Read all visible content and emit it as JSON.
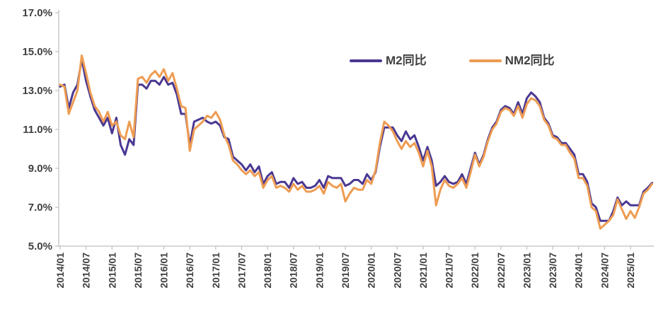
{
  "page": {
    "background": "#ffffff",
    "title": ""
  },
  "chart_data": {
    "type": "line",
    "title": "",
    "gridlines": false,
    "axis_color": "#bfbfbf",
    "text_color": "#404040",
    "legend": {
      "position": "top-center",
      "entries": [
        "M2同比",
        "NM2同比"
      ]
    },
    "x_axis": {
      "label": "",
      "start": "2014/01",
      "end": "2025/06",
      "frequency": "monthly",
      "tick_labels": [
        "2014/01",
        "2014/07",
        "2015/01",
        "2015/07",
        "2016/01",
        "2016/07",
        "2017/01",
        "2017/07",
        "2018/01",
        "2018/07",
        "2019/01",
        "2019/07",
        "2020/01",
        "2020/07",
        "2021/01",
        "2021/07",
        "2022/01",
        "2022/07",
        "2023/01",
        "2023/07",
        "2024/01",
        "2024/07",
        "2025/01"
      ],
      "months_between_ticks": 6
    },
    "y_axis": {
      "label": "",
      "unit": "%",
      "min": 5.0,
      "max": 17.0,
      "tick_values": [
        17.0,
        15.0,
        13.0,
        11.0,
        9.0,
        7.0,
        5.0
      ],
      "tick_labels": [
        "17.0%",
        "15.0%",
        "13.0%",
        "11.0%",
        "9.0%",
        "7.0%",
        "5.0%"
      ]
    },
    "series": [
      {
        "name": "M2同比",
        "color": "#4b3892",
        "values": [
          13.2,
          13.3,
          12.1,
          12.9,
          13.3,
          14.6,
          13.5,
          12.7,
          12.0,
          11.6,
          11.2,
          11.6,
          10.8,
          11.6,
          10.2,
          9.7,
          10.5,
          10.2,
          13.3,
          13.3,
          13.1,
          13.5,
          13.5,
          13.3,
          13.7,
          13.3,
          13.4,
          12.8,
          11.8,
          11.8,
          10.2,
          11.4,
          11.5,
          11.6,
          11.4,
          11.3,
          11.4,
          11.2,
          10.6,
          10.5,
          9.6,
          9.4,
          9.2,
          8.9,
          9.2,
          8.8,
          9.1,
          8.2,
          8.6,
          8.8,
          8.2,
          8.3,
          8.3,
          8.0,
          8.5,
          8.2,
          8.3,
          8.0,
          8.0,
          8.1,
          8.4,
          8.0,
          8.6,
          8.5,
          8.5,
          8.5,
          8.1,
          8.2,
          8.4,
          8.4,
          8.2,
          8.7,
          8.4,
          8.8,
          10.1,
          11.1,
          11.1,
          11.1,
          10.7,
          10.4,
          10.9,
          10.5,
          10.7,
          10.1,
          9.4,
          10.1,
          9.4,
          8.1,
          8.3,
          8.6,
          8.3,
          8.2,
          8.3,
          8.7,
          8.2,
          9.0,
          9.8,
          9.2,
          9.7,
          10.5,
          11.1,
          11.4,
          12.0,
          12.2,
          12.1,
          11.8,
          12.4,
          11.8,
          12.6,
          12.9,
          12.7,
          12.4,
          11.6,
          11.3,
          10.7,
          10.6,
          10.3,
          10.3,
          10.0,
          9.7,
          8.7,
          8.7,
          8.3,
          7.2,
          7.0,
          6.3,
          6.3,
          6.3,
          6.8,
          7.5,
          7.1,
          7.3,
          7.1,
          7.1,
          7.1,
          7.8,
          8.0,
          8.25
        ]
      },
      {
        "name": "NM2同比",
        "color": "#ee9c52",
        "values": [
          13.3,
          13.2,
          11.8,
          12.4,
          13.0,
          14.8,
          13.9,
          12.9,
          12.2,
          11.9,
          11.4,
          11.9,
          11.2,
          11.4,
          10.7,
          10.5,
          11.4,
          10.6,
          13.6,
          13.7,
          13.4,
          13.8,
          14.0,
          13.7,
          14.1,
          13.5,
          13.9,
          13.1,
          12.2,
          12.1,
          9.9,
          11.0,
          11.2,
          11.4,
          11.7,
          11.6,
          11.9,
          11.5,
          10.7,
          10.2,
          9.4,
          9.2,
          8.9,
          8.7,
          8.9,
          8.6,
          8.8,
          8.0,
          8.4,
          8.6,
          8.0,
          8.1,
          8.0,
          7.8,
          8.2,
          7.9,
          8.1,
          7.8,
          7.8,
          7.9,
          8.1,
          7.7,
          8.3,
          8.1,
          8.0,
          8.2,
          7.3,
          7.7,
          8.0,
          7.9,
          7.9,
          8.4,
          8.2,
          8.9,
          10.3,
          11.4,
          11.2,
          10.9,
          10.4,
          10.0,
          10.4,
          10.1,
          10.3,
          9.8,
          9.1,
          9.9,
          9.1,
          7.1,
          7.9,
          8.4,
          8.1,
          8.0,
          8.2,
          8.5,
          8.0,
          8.8,
          9.7,
          9.1,
          9.6,
          10.4,
          11.0,
          11.3,
          11.9,
          12.1,
          12.0,
          11.7,
          12.2,
          11.6,
          12.3,
          12.6,
          12.5,
          12.2,
          11.5,
          11.2,
          10.6,
          10.5,
          10.2,
          10.2,
          9.8,
          9.5,
          8.5,
          8.5,
          8.1,
          7.0,
          6.8,
          5.9,
          6.1,
          6.3,
          6.6,
          7.4,
          6.9,
          6.4,
          6.8,
          6.45,
          7.0,
          7.7,
          7.9,
          8.2
        ]
      }
    ]
  }
}
